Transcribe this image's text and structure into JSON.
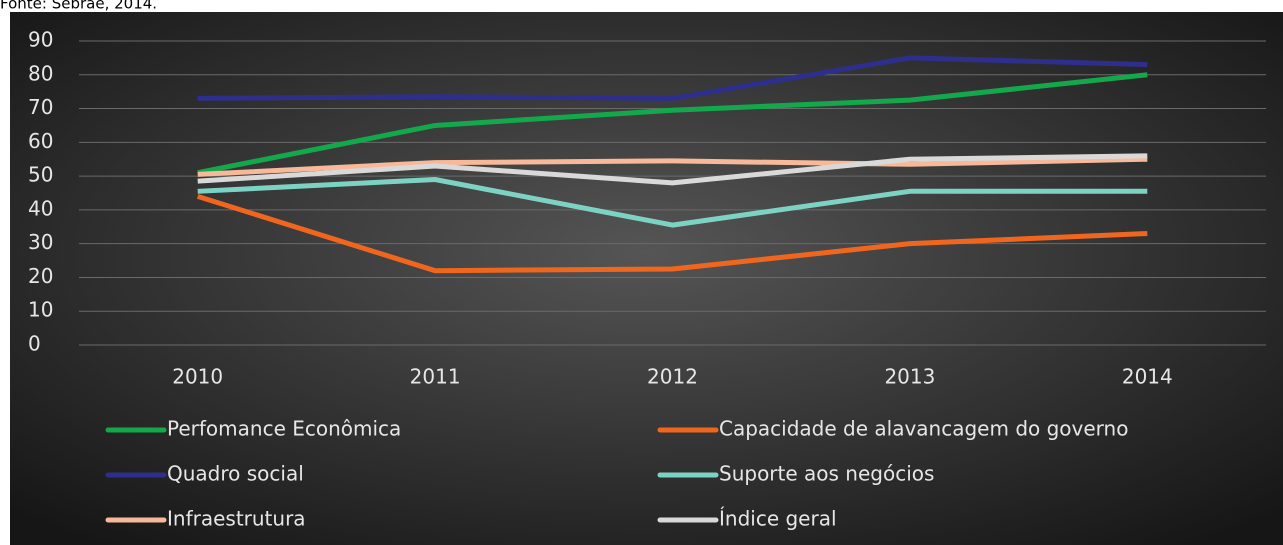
{
  "chart_data": {
    "type": "line",
    "source": "Fonte: Sebrae, 2014.",
    "categories": [
      "2010",
      "2011",
      "2012",
      "2013",
      "2014"
    ],
    "series": [
      {
        "name": "Perfomance Econômica",
        "color": "#13a84b",
        "values": [
          51,
          65,
          69.5,
          72.5,
          80
        ]
      },
      {
        "name": "Capacidade de alavancagem do governo",
        "color": "#f0661f",
        "values": [
          44,
          22,
          22.5,
          30,
          33
        ]
      },
      {
        "name": "Quadro social",
        "color": "#2e2f8c",
        "values": [
          73,
          73.5,
          73,
          85,
          83
        ]
      },
      {
        "name": "Suporte aos negócios",
        "color": "#7dd3c3",
        "values": [
          45.5,
          49,
          35.5,
          45.5,
          45.5
        ]
      },
      {
        "name": "Infraestrutura",
        "color": "#f8b99a",
        "values": [
          50.5,
          54,
          54.5,
          53.5,
          55
        ]
      },
      {
        "name": "Índice geral",
        "color": "#d9d9d9",
        "values": [
          48.5,
          53,
          48,
          55,
          56
        ]
      }
    ],
    "ylim": [
      0,
      90
    ],
    "yticks": [
      0,
      10,
      20,
      30,
      40,
      50,
      60,
      70,
      80,
      90
    ],
    "grid": true,
    "legend": "bottom"
  }
}
